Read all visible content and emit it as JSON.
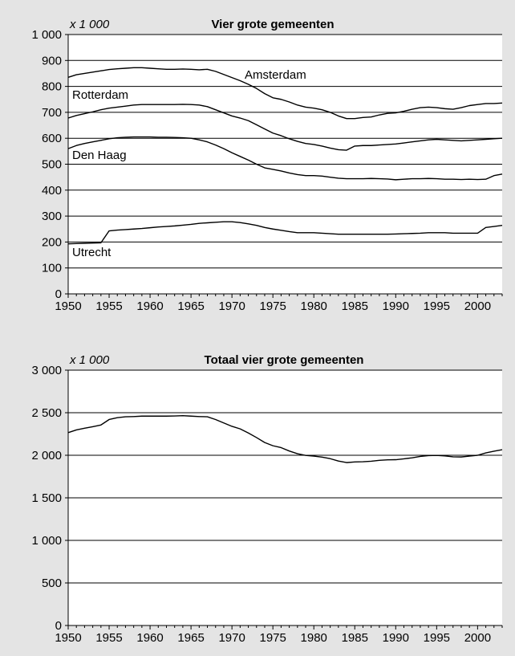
{
  "chart_data": [
    {
      "type": "line",
      "title": "Vier grote gemeenten",
      "unit_label": "x 1 000",
      "xlabel": "",
      "ylabel": "",
      "xlim": [
        1950,
        2003
      ],
      "ylim": [
        0,
        1000
      ],
      "yticks": [
        0,
        100,
        200,
        300,
        400,
        500,
        600,
        700,
        800,
        900,
        1000
      ],
      "ytick_labels": [
        "0",
        "100",
        "200",
        "300",
        "400",
        "500",
        "600",
        "700",
        "800",
        "900",
        "1 000"
      ],
      "xticks": [
        1950,
        1955,
        1960,
        1965,
        1970,
        1975,
        1980,
        1985,
        1990,
        1995,
        2000
      ],
      "grid": "horizontal",
      "legend": "none",
      "x": [
        1950,
        1951,
        1952,
        1953,
        1954,
        1955,
        1956,
        1957,
        1958,
        1959,
        1960,
        1961,
        1962,
        1963,
        1964,
        1965,
        1966,
        1967,
        1968,
        1969,
        1970,
        1971,
        1972,
        1973,
        1974,
        1975,
        1976,
        1977,
        1978,
        1979,
        1980,
        1981,
        1982,
        1983,
        1984,
        1985,
        1986,
        1987,
        1988,
        1989,
        1990,
        1991,
        1992,
        1993,
        1994,
        1995,
        1996,
        1997,
        1998,
        1999,
        2000,
        2001,
        2002,
        2003
      ],
      "series": [
        {
          "name": "Amsterdam",
          "values": [
            835,
            845,
            850,
            855,
            860,
            865,
            868,
            870,
            872,
            872,
            870,
            868,
            866,
            866,
            867,
            866,
            864,
            866,
            858,
            846,
            834,
            822,
            808,
            792,
            772,
            756,
            750,
            740,
            728,
            720,
            716,
            710,
            700,
            686,
            676,
            676,
            680,
            682,
            690,
            696,
            698,
            704,
            712,
            718,
            720,
            718,
            714,
            712,
            718,
            726,
            730,
            734,
            734,
            736
          ]
        },
        {
          "name": "Rotterdam",
          "values": [
            678,
            688,
            695,
            702,
            710,
            716,
            720,
            724,
            728,
            730,
            730,
            730,
            730,
            730,
            731,
            730,
            728,
            722,
            710,
            698,
            686,
            678,
            668,
            652,
            636,
            620,
            610,
            598,
            588,
            580,
            576,
            570,
            562,
            556,
            554,
            570,
            572,
            572,
            574,
            576,
            578,
            582,
            586,
            590,
            594,
            596,
            594,
            592,
            590,
            592,
            594,
            596,
            598,
            600
          ]
        },
        {
          "name": "Den Haag",
          "values": [
            560,
            572,
            580,
            586,
            592,
            598,
            602,
            604,
            605,
            605,
            605,
            604,
            604,
            603,
            602,
            600,
            594,
            586,
            574,
            560,
            544,
            530,
            516,
            500,
            486,
            480,
            474,
            466,
            460,
            456,
            456,
            454,
            450,
            446,
            444,
            444,
            444,
            445,
            444,
            443,
            440,
            442,
            444,
            444,
            445,
            444,
            442,
            442,
            441,
            442,
            441,
            442,
            456,
            462
          ]
        },
        {
          "name": "Utrecht",
          "values": [
            193,
            194,
            195,
            196,
            197,
            243,
            246,
            248,
            250,
            252,
            255,
            258,
            260,
            262,
            265,
            268,
            272,
            274,
            276,
            278,
            278,
            275,
            270,
            264,
            256,
            250,
            245,
            240,
            236,
            236,
            236,
            234,
            232,
            230,
            230,
            230,
            230,
            230,
            230,
            230,
            231,
            232,
            233,
            234,
            236,
            236,
            236,
            234,
            234,
            234,
            234,
            256,
            260,
            264
          ]
        }
      ],
      "series_labels": [
        "Amsterdam",
        "Rotterdam",
        "Den Haag",
        "Utrecht"
      ]
    },
    {
      "type": "line",
      "title": "Totaal vier grote gemeenten",
      "unit_label": "x 1 000",
      "xlabel": "",
      "ylabel": "",
      "xlim": [
        1950,
        2003
      ],
      "ylim": [
        0,
        3000
      ],
      "yticks": [
        0,
        500,
        1000,
        1500,
        2000,
        2500,
        3000
      ],
      "ytick_labels": [
        "0",
        "500",
        "1 000",
        "1 500",
        "2 000",
        "2 500",
        "3 000"
      ],
      "xticks": [
        1950,
        1955,
        1960,
        1965,
        1970,
        1975,
        1980,
        1985,
        1990,
        1995,
        2000
      ],
      "grid": "horizontal",
      "legend": "none",
      "x": [
        1950,
        1951,
        1952,
        1953,
        1954,
        1955,
        1956,
        1957,
        1958,
        1959,
        1960,
        1961,
        1962,
        1963,
        1964,
        1965,
        1966,
        1967,
        1968,
        1969,
        1970,
        1971,
        1972,
        1973,
        1974,
        1975,
        1976,
        1977,
        1978,
        1979,
        1980,
        1981,
        1982,
        1983,
        1984,
        1985,
        1986,
        1987,
        1988,
        1989,
        1990,
        1991,
        1992,
        1993,
        1994,
        1995,
        1996,
        1997,
        1998,
        1999,
        2000,
        2001,
        2002,
        2003
      ],
      "series": [
        {
          "values": [
            2266,
            2298,
            2318,
            2336,
            2356,
            2420,
            2442,
            2452,
            2455,
            2460,
            2460,
            2460,
            2460,
            2462,
            2465,
            2460,
            2455,
            2452,
            2420,
            2380,
            2340,
            2310,
            2262,
            2208,
            2150,
            2112,
            2090,
            2050,
            2018,
            1998,
            1990,
            1978,
            1960,
            1932,
            1914,
            1922,
            1924,
            1930,
            1940,
            1946,
            1948,
            1958,
            1970,
            1986,
            1996,
            1998,
            1992,
            1982,
            1980,
            1990,
            2000,
            2028,
            2048,
            2065
          ]
        }
      ]
    }
  ]
}
